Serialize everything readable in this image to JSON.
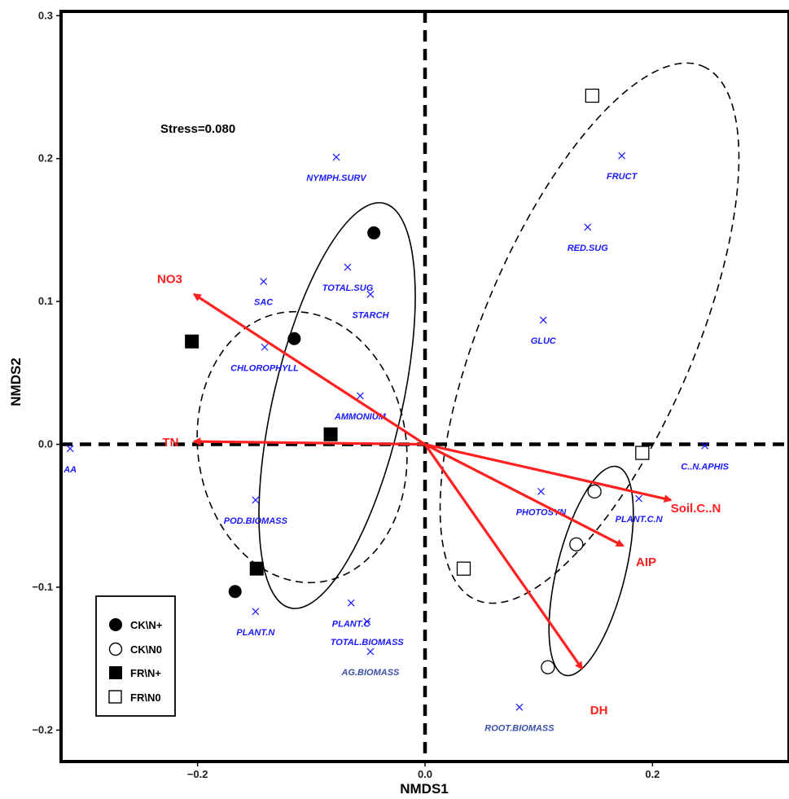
{
  "chart_data": {
    "type": "scatter",
    "xlabel": "NMDS1",
    "ylabel": "NMDS2",
    "xlim": [
      -0.32,
      0.32
    ],
    "ylim": [
      -0.222,
      0.303
    ],
    "x_ticks": [
      -0.2,
      0.0,
      0.2
    ],
    "y_ticks": [
      -0.2,
      -0.1,
      0.0,
      0.1,
      0.2,
      0.3
    ],
    "x_tick_labels": [
      "−0.2",
      "0.0",
      "0.2"
    ],
    "y_tick_labels": [
      "−0.2",
      "−0.1",
      "0.0",
      "0.1",
      "0.2",
      "0.3"
    ],
    "stress_label": "Stress=0.080",
    "grid": false,
    "legend_position": "bottom-left",
    "colors": {
      "variables": "#1a1aff",
      "variables_dark": "#3a4fa8",
      "vectors": "#ff2020",
      "points": "#000000"
    },
    "series": [
      {
        "name": "CK\\N+",
        "marker": "filled-circle",
        "points": [
          [
            -0.045,
            0.148
          ],
          [
            -0.115,
            0.074
          ],
          [
            -0.167,
            -0.103
          ]
        ]
      },
      {
        "name": "CK\\N0",
        "marker": "open-circle",
        "points": [
          [
            0.149,
            -0.033
          ],
          [
            0.133,
            -0.07
          ],
          [
            0.108,
            -0.156
          ]
        ]
      },
      {
        "name": "FR\\N+",
        "marker": "filled-square",
        "points": [
          [
            -0.205,
            0.072
          ],
          [
            -0.083,
            0.007
          ],
          [
            -0.148,
            -0.087
          ]
        ]
      },
      {
        "name": "FR\\N0",
        "marker": "open-square",
        "points": [
          [
            0.147,
            0.244
          ],
          [
            0.191,
            -0.006
          ],
          [
            0.034,
            -0.087
          ]
        ]
      }
    ],
    "variables": [
      {
        "label": "NYMPH.SURV",
        "x": -0.078,
        "y": 0.201
      },
      {
        "label": "SAC",
        "x": -0.142,
        "y": 0.114
      },
      {
        "label": "TOTAL.SUG",
        "x": -0.068,
        "y": 0.124
      },
      {
        "label": "STARCH",
        "x": -0.048,
        "y": 0.105
      },
      {
        "label": "CHLOROPHYLL",
        "x": -0.141,
        "y": 0.068
      },
      {
        "label": "AMMONIUM",
        "x": -0.057,
        "y": 0.034
      },
      {
        "label": "AA",
        "x": -0.312,
        "y": -0.003
      },
      {
        "label": "POD.BIOMASS",
        "x": -0.149,
        "y": -0.039
      },
      {
        "label": "PLANT.N",
        "x": -0.149,
        "y": -0.117
      },
      {
        "label": "PLANT.C",
        "x": -0.065,
        "y": -0.111
      },
      {
        "label": "TOTAL.BIOMASS",
        "x": -0.051,
        "y": -0.124
      },
      {
        "label": "AG.BIOMASS",
        "x": -0.048,
        "y": -0.145
      },
      {
        "label": "FRUCT",
        "x": 0.173,
        "y": 0.202
      },
      {
        "label": "RED.SUG",
        "x": 0.143,
        "y": 0.152
      },
      {
        "label": "GLUC",
        "x": 0.104,
        "y": 0.087
      },
      {
        "label": "C..N.APHIS",
        "x": 0.246,
        "y": -0.001
      },
      {
        "label": "PHOTOSYN",
        "x": 0.102,
        "y": -0.033
      },
      {
        "label": "PLANT.C.N",
        "x": 0.188,
        "y": -0.038
      },
      {
        "label": "ROOT.BIOMASS",
        "x": 0.083,
        "y": -0.184
      }
    ],
    "vectors": [
      {
        "label": "NO3",
        "x": -0.203,
        "y": 0.105
      },
      {
        "label": "TN",
        "x": -0.203,
        "y": 0.002
      },
      {
        "label": "Soil.C..N",
        "x": 0.216,
        "y": -0.039
      },
      {
        "label": "AIP",
        "x": 0.174,
        "y": -0.071
      },
      {
        "label": "DH",
        "x": 0.138,
        "y": -0.157
      }
    ]
  }
}
